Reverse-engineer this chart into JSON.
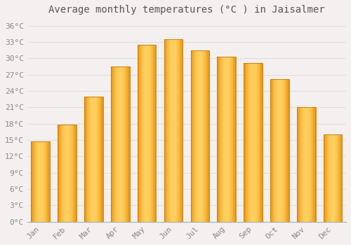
{
  "months": [
    "Jan",
    "Feb",
    "Mar",
    "Apr",
    "May",
    "Jun",
    "Jul",
    "Aug",
    "Sep",
    "Oct",
    "Nov",
    "Dec"
  ],
  "temperatures": [
    14.7,
    17.8,
    23.0,
    28.5,
    32.5,
    33.5,
    31.5,
    30.3,
    29.2,
    26.2,
    21.0,
    16.0
  ],
  "title": "Average monthly temperatures (°C ) in Jaisalmer",
  "ylim": [
    0,
    37
  ],
  "yticks": [
    0,
    3,
    6,
    9,
    12,
    15,
    18,
    21,
    24,
    27,
    30,
    33,
    36
  ],
  "bar_color_center": "#FFD060",
  "bar_color_edge": "#E8900A",
  "bar_edge_color": "#C87800",
  "background_color": "#F5F0F0",
  "plot_bg_color": "#F5F0F0",
  "grid_color": "#DDDDDD",
  "title_fontsize": 10,
  "tick_fontsize": 8,
  "title_color": "#555555",
  "tick_color": "#888888",
  "bar_width": 0.7
}
